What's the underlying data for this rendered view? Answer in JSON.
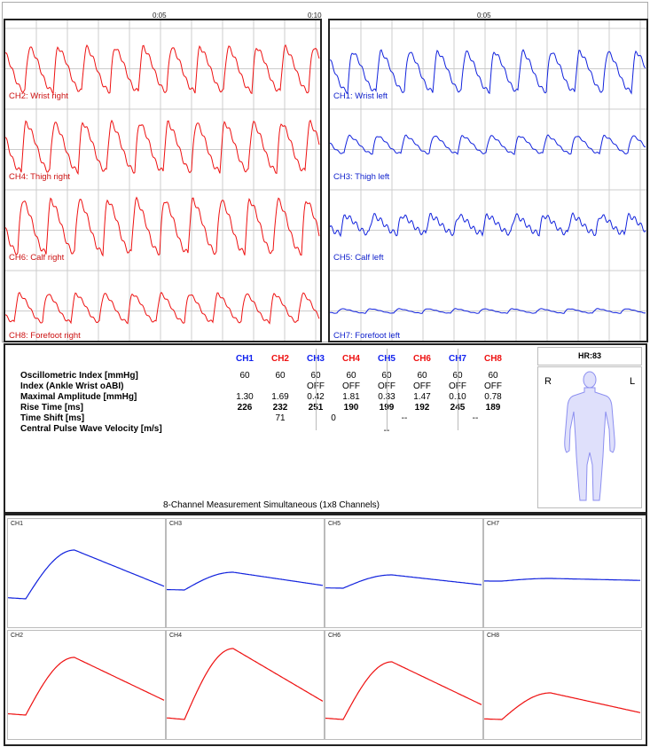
{
  "time_axis": {
    "left_ticks": [
      "0:05",
      "0:10"
    ],
    "right_ticks": [
      "0:05"
    ]
  },
  "colors": {
    "left": "#ee1111",
    "right": "#1122dd",
    "header_left": "#ee1111",
    "header_right": "#1122ee"
  },
  "left_channels": [
    "CH2: Wrist right",
    "CH4: Thigh right",
    "CH6: Calf right",
    "CH8: Forefoot right"
  ],
  "right_channels": [
    "CH1: Wrist left",
    "CH3: Thigh left",
    "CH5: Calf left",
    "CH7: Forefoot left"
  ],
  "table": {
    "headers": [
      "CH1",
      "CH2",
      "CH3",
      "CH4",
      "CH5",
      "CH6",
      "CH7",
      "CH8"
    ],
    "rows": [
      {
        "label": "Oscillometric Index [mmHg]",
        "values": [
          "60",
          "60",
          "60",
          "60",
          "60",
          "60",
          "60",
          "60"
        ],
        "bold": false
      },
      {
        "label": "Index (Ankle Wrist oABI)",
        "values": [
          "",
          "",
          "OFF",
          "OFF",
          "OFF",
          "OFF",
          "OFF",
          "OFF"
        ],
        "bold": false
      },
      {
        "label": "Maximal Amplitude [mmHg]",
        "values": [
          "1.30",
          "1.69",
          "0.42",
          "1.81",
          "0.33",
          "1.47",
          "0.10",
          "0.78"
        ],
        "bold": false
      },
      {
        "label": "Rise Time [ms]",
        "values": [
          "226",
          "232",
          "251",
          "190",
          "199",
          "192",
          "245",
          "189"
        ],
        "bold": true
      }
    ],
    "time_shift_label": "Time Shift [ms]",
    "time_shift_values": [
      "71",
      "0",
      "--",
      "--"
    ],
    "pwv_label": "Central Pulse Wave Velocity [m/s]",
    "pwv_value": "--",
    "caption": "8-Channel Measurement Simultaneous (1x8 Channels)"
  },
  "hr": {
    "label": "HR:83",
    "right_side": "R",
    "left_side": "L"
  },
  "mini_panels": [
    "CH1",
    "CH3",
    "CH5",
    "CH7",
    "CH2",
    "CH4",
    "CH6",
    "CH8"
  ]
}
